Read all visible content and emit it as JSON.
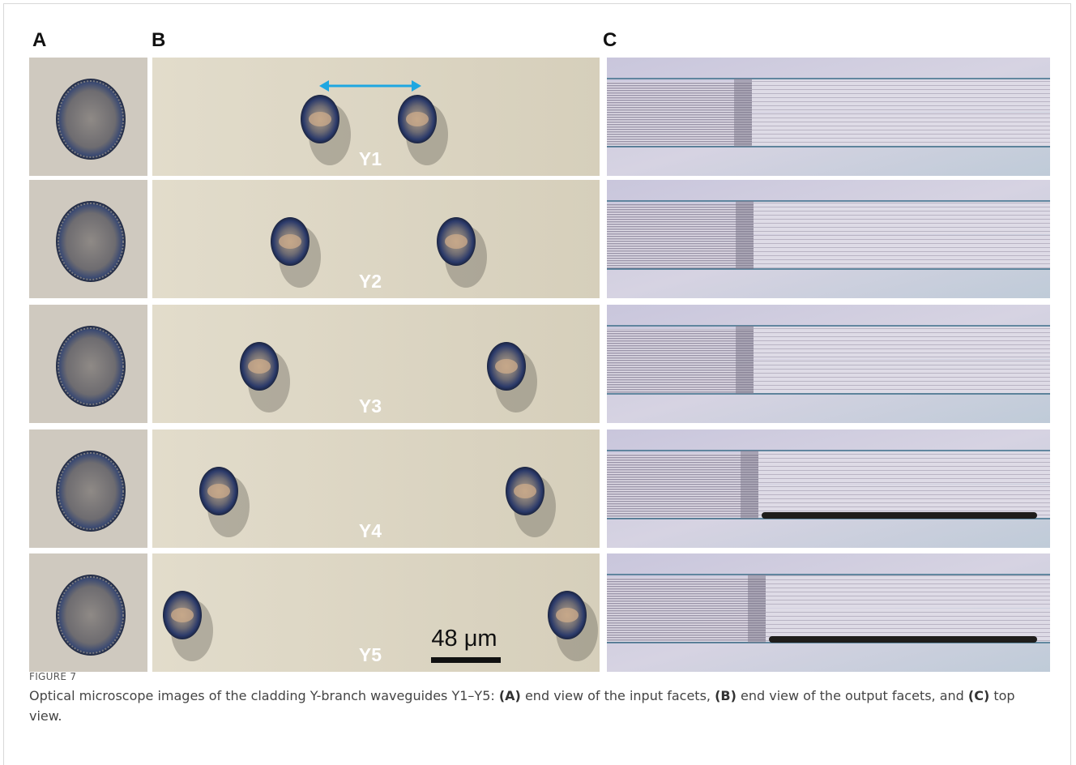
{
  "figure": {
    "panels": [
      "A",
      "B",
      "C"
    ],
    "rows": [
      "Y1",
      "Y2",
      "Y3",
      "Y4",
      "Y5"
    ],
    "scale_bar": "48 μm",
    "label": "FIGURE 7",
    "caption": [
      "Optical microscope images of the cladding Y-branch waveguides Y1–Y5: ",
      "(A)",
      " end view of the input facets, ",
      "(B)",
      " end view of the output facets, and ",
      "(C)",
      " top view."
    ]
  }
}
